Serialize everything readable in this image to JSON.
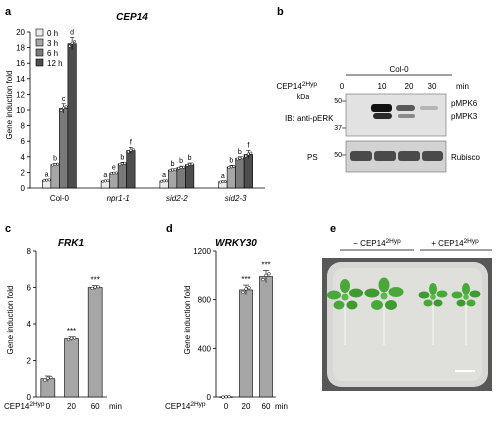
{
  "panel_labels": {
    "a": "a",
    "b": "b",
    "c": "c",
    "d": "d",
    "e": "e"
  },
  "colors": {
    "0h": "#ebebeb",
    "3h": "#a6a6a6",
    "6h": "#7a7a7a",
    "12h": "#4d4d4d",
    "single": "#a6a6a6",
    "plate": "#d5d6d1",
    "leaf": "#4aa83a"
  },
  "chart_data": [
    {
      "panel": "a",
      "type": "bar",
      "title": "CEP14",
      "xlabel": "",
      "ylabel": "Gene induction fold",
      "ylim": [
        0,
        20
      ],
      "yticks": [
        "0",
        "2",
        "4",
        "6",
        "8",
        "10",
        "12",
        "14",
        "16",
        "18",
        "20"
      ],
      "categories": [
        "Col-0",
        "npr1-1",
        "sid2-2",
        "sid2-3"
      ],
      "series": [
        {
          "name": "0 h",
          "values": [
            1.0,
            0.9,
            0.9,
            0.8
          ],
          "errors": [
            0.1,
            0.1,
            0.1,
            0.1
          ],
          "letters": [
            "a",
            "a",
            "a",
            "a"
          ]
        },
        {
          "name": "3 h",
          "values": [
            3.0,
            1.9,
            2.3,
            2.7
          ],
          "errors": [
            0.15,
            0.1,
            0.15,
            0.2
          ],
          "letters": [
            "b",
            "e",
            "b",
            "b"
          ]
        },
        {
          "name": "6 h",
          "values": [
            10.2,
            3.1,
            2.6,
            3.8
          ],
          "errors": [
            0.6,
            0.2,
            0.2,
            0.2
          ],
          "letters": [
            "c",
            "b",
            "b",
            "b"
          ]
        },
        {
          "name": "12 h",
          "values": [
            18.5,
            4.8,
            3.0,
            4.3
          ],
          "errors": [
            0.8,
            0.4,
            0.2,
            0.5
          ],
          "letters": [
            "d",
            "f",
            "b",
            "f"
          ]
        }
      ],
      "legend": "top-left"
    },
    {
      "panel": "c",
      "type": "bar",
      "title": "FRK1",
      "xlabel": "min",
      "x_prefix": "CEP14",
      "x_super": "2Hyp",
      "ylabel": "Gene induction fold",
      "ylim": [
        0,
        8
      ],
      "yticks": [
        "0",
        "2",
        "4",
        "6",
        "8"
      ],
      "categories": [
        "0",
        "20",
        "60"
      ],
      "values": [
        1.0,
        3.2,
        6.0
      ],
      "errors": [
        0.15,
        0.1,
        0.1
      ],
      "significance": [
        "",
        "***",
        "***"
      ]
    },
    {
      "panel": "d",
      "type": "bar",
      "title": "WRKY30",
      "xlabel": "min",
      "x_prefix": "CEP14",
      "x_super": "2Hyp",
      "ylabel": "Gene induction fold",
      "ylim": [
        0,
        1200
      ],
      "yticks": [
        "0",
        "400",
        "800",
        "1200"
      ],
      "categories": [
        "0",
        "20",
        "60"
      ],
      "values": [
        1,
        880,
        990
      ],
      "errors": [
        5,
        40,
        50
      ],
      "significance": [
        "",
        "***",
        "***"
      ]
    }
  ],
  "blot": {
    "group_label": "Col-0",
    "treatment_prefix": "CEP14",
    "treatment_super": "2Hyp",
    "times": [
      "0",
      "10",
      "20",
      "30"
    ],
    "time_unit": "min",
    "kda_label": "kDa",
    "ib_label": "IB: anti-pERK",
    "marker_top": "50",
    "marker_mid": "37",
    "marker_ps": "50",
    "band_labels": [
      "pMPK6",
      "pMPK3"
    ],
    "ps_label": "PS",
    "loading_label": "Rubisco"
  },
  "photo": {
    "minus_prefix": "− CEP14",
    "plus_prefix": "+ CEP14",
    "super": "2Hyp"
  }
}
